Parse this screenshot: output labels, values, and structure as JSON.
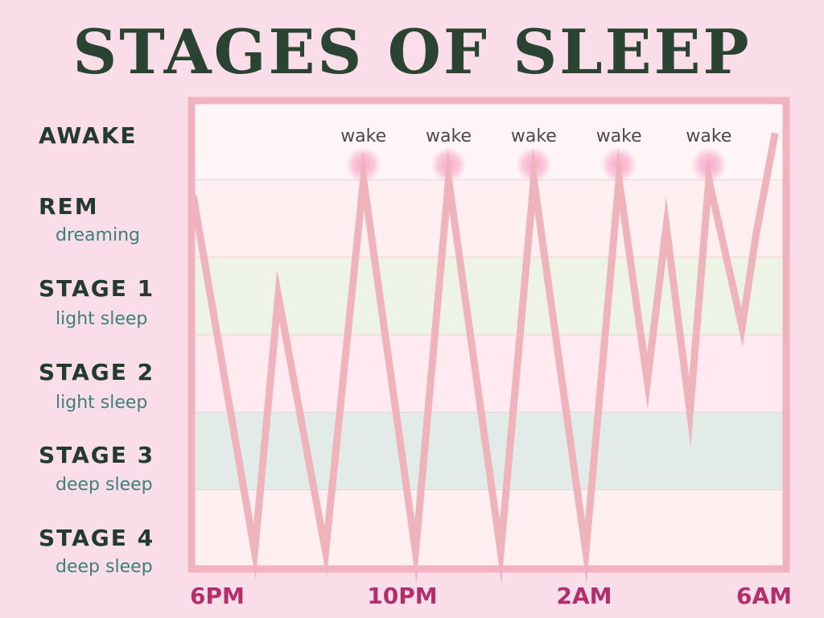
{
  "title": "STAGES OF SLEEP",
  "stages": [
    {
      "name": "AWAKE",
      "subtitle": ""
    },
    {
      "name": "REM",
      "subtitle": "dreaming"
    },
    {
      "name": "STAGE 1",
      "subtitle": "light sleep"
    },
    {
      "name": "STAGE 2",
      "subtitle": "light sleep"
    },
    {
      "name": "STAGE 3",
      "subtitle": "deep sleep"
    },
    {
      "name": "STAGE 4",
      "subtitle": "deep sleep"
    }
  ],
  "colors": {
    "background": "#f9dde9",
    "frame": "#f0b3bf",
    "line": "#efb3bc",
    "band_awake": "#fff5f7",
    "band_rem": "#ffeff1",
    "band_stage1": "#edf3e5",
    "band_stage2": "#ffeaf1",
    "band_stage3": "#e3ebe8",
    "band_stage4": "#ffeff1",
    "wake_glow": "#f6a9c9",
    "time_label": "#b32f6c",
    "title": "#2b4332"
  },
  "chart_data": {
    "type": "line",
    "x_tick_labels": [
      "6PM",
      "10PM",
      "2AM",
      "6AM"
    ],
    "x_range_hours": [
      18,
      30.5
    ],
    "y_levels": [
      "AWAKE",
      "REM",
      "STAGE 1",
      "STAGE 2",
      "STAGE 3",
      "STAGE 4"
    ],
    "y_range": [
      0,
      5
    ],
    "series": [
      {
        "points": [
          [
            18.0,
            0.7
          ],
          [
            19.3,
            5.3
          ],
          [
            19.8,
            2.0
          ],
          [
            20.8,
            5.3
          ],
          [
            21.6,
            0.5
          ],
          [
            22.7,
            5.3
          ],
          [
            23.4,
            0.5
          ],
          [
            24.5,
            5.3
          ],
          [
            25.2,
            0.5
          ],
          [
            26.3,
            5.3
          ],
          [
            27.0,
            0.5
          ],
          [
            27.6,
            3.1
          ],
          [
            28.0,
            1.1
          ],
          [
            28.5,
            3.5
          ],
          [
            28.9,
            0.5
          ],
          [
            29.6,
            2.4
          ],
          [
            29.9,
            1.2
          ],
          [
            30.3,
            -0.1
          ]
        ]
      }
    ],
    "annotations": [
      {
        "text": "wake",
        "x": 21.6
      },
      {
        "text": "wake",
        "x": 23.4
      },
      {
        "text": "wake",
        "x": 25.2
      },
      {
        "text": "wake",
        "x": 27.0
      },
      {
        "text": "wake",
        "x": 28.9
      }
    ],
    "grid": false
  }
}
